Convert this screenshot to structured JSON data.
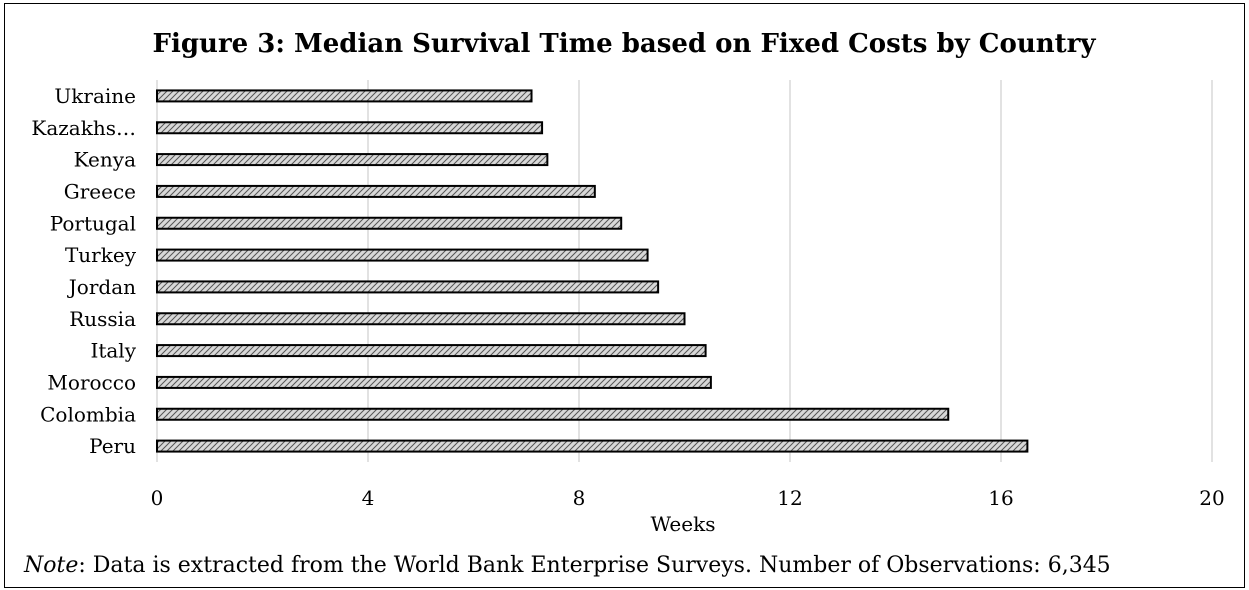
{
  "chart_data": {
    "type": "bar",
    "orientation": "horizontal",
    "title": "Figure 3: Median Survival Time based on Fixed Costs by Country",
    "xlabel": "Weeks",
    "ylabel": "",
    "xlim": [
      0,
      20
    ],
    "xticks": [
      "0",
      "4",
      "8",
      "12",
      "16",
      "20"
    ],
    "grid": true,
    "legend": "none",
    "categories": [
      "Ukraine",
      "Kazakhs…",
      "Kenya",
      "Greece",
      "Portugal",
      "Turkey",
      "Jordan",
      "Russia",
      "Italy",
      "Morocco",
      "Colombia",
      "Peru"
    ],
    "values": [
      7.1,
      7.3,
      7.4,
      8.3,
      8.8,
      9.3,
      9.5,
      10.0,
      10.4,
      10.5,
      15.0,
      16.5
    ],
    "bar_fill": "#c8c8c8",
    "bar_stroke": "#000000"
  },
  "note": {
    "prefix": "Note",
    "text": ": Data is extracted from the World Bank Enterprise Surveys. Number of Observations: 6,345"
  }
}
